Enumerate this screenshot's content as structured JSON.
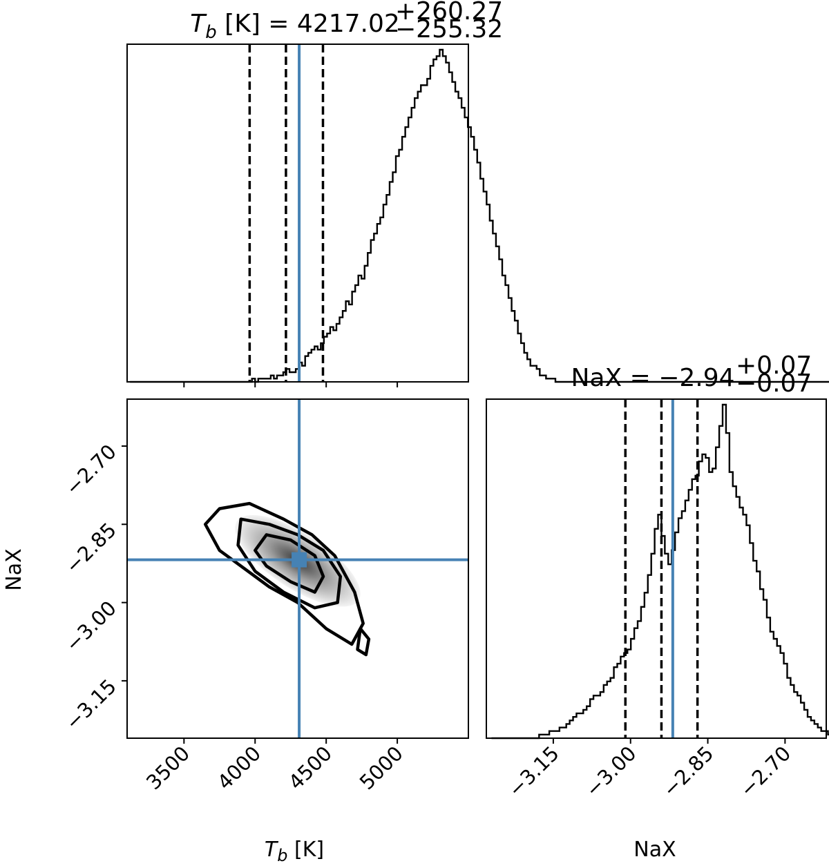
{
  "chart_data": [
    {
      "panel": "tb-histogram",
      "type": "histogram",
      "title": {
        "symbol": "T",
        "subscript": "b",
        "rest": " [K] = 4217.02",
        "sup": "+260.27",
        "sub": "−255.32"
      },
      "xlim": [
        3100,
        5500
      ],
      "bin_start": 3120,
      "bin_width": 22,
      "counts": [
        0,
        0,
        0,
        0,
        0,
        0,
        0,
        0,
        0,
        0,
        0,
        0,
        0,
        0,
        0,
        0,
        0,
        0,
        0,
        0,
        0,
        0,
        0,
        0,
        0,
        0,
        0,
        0,
        0,
        0,
        0,
        0,
        0,
        0,
        0,
        0,
        0,
        0,
        0,
        1,
        0,
        1,
        1,
        1,
        1,
        2,
        1,
        2,
        2,
        3,
        4,
        3,
        3,
        4,
        6,
        5,
        8,
        9,
        10,
        11,
        10,
        12,
        14,
        15,
        17,
        16,
        18,
        20,
        22,
        25,
        24,
        28,
        30,
        33,
        32,
        36,
        40,
        44,
        46,
        49,
        51,
        55,
        58,
        62,
        65,
        70,
        72,
        76,
        79,
        82,
        85,
        88,
        90,
        92,
        92,
        94,
        98,
        100,
        101,
        103,
        101,
        99,
        96,
        93,
        90,
        88,
        85,
        82,
        79,
        76,
        72,
        68,
        63,
        59,
        55,
        50,
        46,
        42,
        38,
        33,
        30,
        26,
        22,
        19,
        15,
        12,
        9,
        7,
        5,
        5,
        4,
        2,
        2,
        1,
        1,
        1,
        0,
        0,
        0,
        0,
        0,
        0,
        0,
        0,
        0,
        0,
        0,
        0,
        0,
        0,
        0,
        0,
        0,
        0,
        0,
        0,
        0,
        0,
        0,
        0,
        0,
        0,
        0,
        0,
        0,
        0,
        0,
        0,
        0,
        0,
        0,
        0,
        0,
        0,
        0,
        0,
        0,
        0,
        0,
        0,
        0,
        0,
        0,
        0,
        0,
        0,
        0,
        0,
        0,
        0,
        0,
        0,
        0,
        0,
        0,
        0,
        0,
        0,
        0,
        0,
        0,
        0,
        0,
        0,
        0,
        0,
        0,
        0,
        0,
        0,
        0,
        0,
        0,
        0,
        0,
        0,
        0,
        0,
        0,
        0,
        0,
        0,
        0,
        0,
        0,
        0,
        0,
        0,
        0,
        0,
        0
      ],
      "quantiles": [
        3961.7,
        4217.02,
        4477.29
      ],
      "truth": 4310,
      "xticks": [
        3500,
        4000,
        4500,
        5000
      ]
    },
    {
      "panel": "nax-histogram",
      "type": "histogram",
      "title": {
        "rest": "NaX = −2.94",
        "sup": "+0.07",
        "sub": "−0.07"
      },
      "xlim": [
        -3.28,
        -2.62
      ],
      "bin_start": -3.27,
      "bin_width": 0.0066,
      "counts": [
        0,
        0,
        0,
        0,
        0,
        0,
        0,
        0,
        0,
        0,
        0,
        0,
        0,
        0,
        1,
        1,
        1,
        2,
        2,
        2,
        3,
        3,
        4,
        5,
        6,
        7,
        7,
        8,
        9,
        11,
        12,
        12,
        13,
        15,
        16,
        17,
        20,
        21,
        23,
        24,
        25,
        28,
        31,
        33,
        37,
        41,
        46,
        52,
        59,
        63,
        57,
        52,
        49,
        53,
        58,
        62,
        64,
        67,
        70,
        73,
        74,
        78,
        80,
        79,
        75,
        76,
        82,
        88,
        94,
        86,
        75,
        71,
        68,
        65,
        63,
        60,
        55,
        50,
        47,
        42,
        39,
        34,
        30,
        28,
        26,
        24,
        21,
        17,
        15,
        13,
        12,
        10,
        8,
        6,
        5,
        4,
        3,
        2,
        2,
        1,
        1,
        1,
        0,
        0,
        0,
        0,
        0,
        0,
        0,
        0,
        0,
        0,
        0,
        0
      ],
      "quantiles": [
        -3.01,
        -2.94,
        -2.87
      ],
      "truth": -2.918,
      "xticks": [
        -3.15,
        -3.0,
        -2.85,
        -2.7
      ]
    },
    {
      "panel": "joint-2d",
      "type": "contour",
      "xlim": [
        3100,
        5500
      ],
      "ylim": [
        -3.26,
        -2.61
      ],
      "xticks": [
        3500,
        4000,
        4500,
        5000
      ],
      "yticks": [
        -2.7,
        -2.85,
        -3.0,
        -3.15
      ],
      "truth": [
        4310,
        -2.918
      ],
      "density_center": [
        4300,
        -2.92
      ],
      "contours": [
        {
          "level": "outer",
          "x": [
            3750,
            3960,
            4200,
            4400,
            4560,
            4700,
            4760,
            4680,
            4500,
            4300,
            4100,
            3900,
            3750,
            3650,
            3750
          ],
          "y": [
            -2.82,
            -2.81,
            -2.84,
            -2.87,
            -2.91,
            -2.98,
            -3.04,
            -3.08,
            -3.05,
            -3.0,
            -2.97,
            -2.93,
            -2.9,
            -2.85,
            -2.82
          ]
        },
        {
          "level": "middle",
          "x": [
            3900,
            4100,
            4300,
            4480,
            4600,
            4580,
            4420,
            4200,
            4000,
            3880,
            3900
          ],
          "y": [
            -2.84,
            -2.85,
            -2.87,
            -2.9,
            -2.95,
            -3.0,
            -3.01,
            -2.98,
            -2.94,
            -2.89,
            -2.84
          ]
        },
        {
          "level": "inner",
          "x": [
            4080,
            4250,
            4420,
            4480,
            4420,
            4250,
            4080,
            4000,
            4080
          ],
          "y": [
            -2.87,
            -2.88,
            -2.91,
            -2.95,
            -2.98,
            -2.96,
            -2.93,
            -2.9,
            -2.87
          ]
        },
        {
          "level": "island",
          "x": [
            4740,
            4800,
            4780,
            4720,
            4740
          ],
          "y": [
            -3.05,
            -3.07,
            -3.1,
            -3.09,
            -3.05
          ]
        }
      ]
    }
  ],
  "axes": {
    "tb": {
      "symbol": "T",
      "subscript": "b",
      "unit": " [K]"
    },
    "nax": "NaX"
  },
  "colors": {
    "truth": "#4682b4",
    "line": "#000000"
  },
  "tick_labels": {
    "joint_x": [
      "3500",
      "4000",
      "4500",
      "5000"
    ],
    "joint_y": [
      "−2.70",
      "−2.85",
      "−3.00",
      "−3.15"
    ],
    "nax_x": [
      "−3.15",
      "−3.00",
      "−2.85",
      "−2.70"
    ]
  }
}
